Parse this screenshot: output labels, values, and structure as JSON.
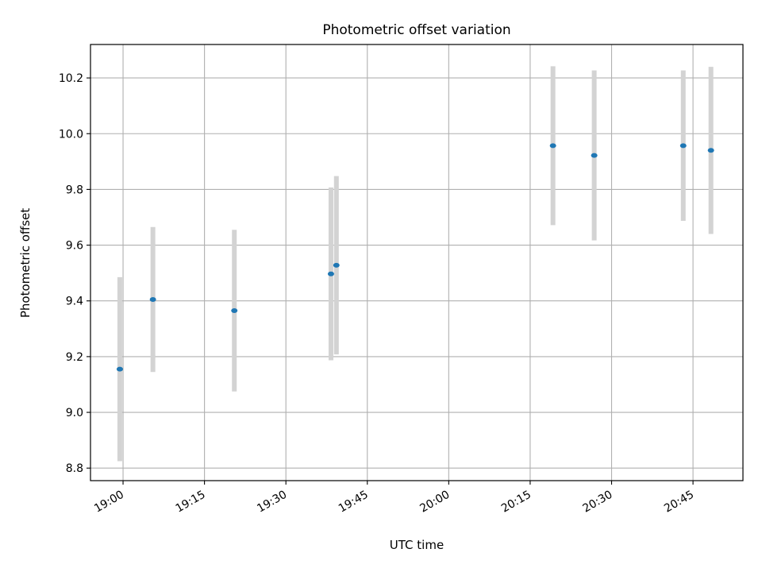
{
  "chart_data": {
    "type": "scatter",
    "title": "Photometric offset variation",
    "xlabel": "UTC time",
    "ylabel": "Photometric offset",
    "x_ticks": [
      "19:00",
      "19:15",
      "19:30",
      "19:45",
      "20:00",
      "20:15",
      "20:30",
      "20:45"
    ],
    "x_tick_minutes": [
      0,
      15,
      30,
      45,
      60,
      75,
      90,
      105
    ],
    "x_range_minutes": [
      -6,
      114.2
    ],
    "y_ticks": [
      "8.8",
      "9.0",
      "9.2",
      "9.4",
      "9.6",
      "9.8",
      "10.0",
      "10.2"
    ],
    "y_tick_values": [
      8.8,
      9.0,
      9.2,
      9.4,
      9.6,
      9.8,
      10.0,
      10.2
    ],
    "ylim": [
      8.755,
      10.32
    ],
    "grid": true,
    "marker_color": "#1f77b4",
    "errorbar_color": "#d3d3d3",
    "points": [
      {
        "t": -0.6,
        "y": 9.155,
        "err": 0.33
      },
      {
        "t": 5.5,
        "y": 9.405,
        "err": 0.26
      },
      {
        "t": 20.5,
        "y": 9.365,
        "err": 0.29
      },
      {
        "t": 38.3,
        "y": 9.497,
        "err": 0.31
      },
      {
        "t": 39.3,
        "y": 9.528,
        "err": 0.32
      },
      {
        "t": 79.2,
        "y": 9.957,
        "err": 0.285
      },
      {
        "t": 86.8,
        "y": 9.922,
        "err": 0.305
      },
      {
        "t": 103.2,
        "y": 9.957,
        "err": 0.27
      },
      {
        "t": 108.3,
        "y": 9.94,
        "err": 0.3
      }
    ]
  }
}
